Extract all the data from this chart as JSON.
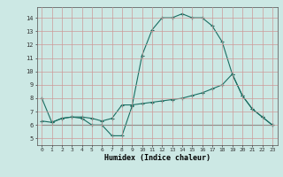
{
  "title": "",
  "xlabel": "Humidex (Indice chaleur)",
  "bg_color": "#cce8e4",
  "grid_color": "#cc9999",
  "line_color": "#1a6e62",
  "x_ticks": [
    0,
    1,
    2,
    3,
    4,
    5,
    6,
    7,
    8,
    9,
    10,
    11,
    12,
    13,
    14,
    15,
    16,
    17,
    18,
    19,
    20,
    21,
    22,
    23
  ],
  "ylim": [
    4.5,
    14.8
  ],
  "xlim": [
    -0.5,
    23.5
  ],
  "series1_x": [
    0,
    1,
    2,
    3,
    4,
    5,
    6,
    7,
    8,
    9,
    10,
    11,
    12,
    13,
    14,
    15,
    16,
    17,
    18,
    19,
    20,
    21,
    22,
    23
  ],
  "series1_y": [
    8.0,
    6.2,
    6.5,
    6.6,
    6.5,
    6.0,
    6.0,
    5.2,
    5.2,
    7.4,
    11.2,
    13.1,
    14.0,
    14.0,
    14.3,
    14.0,
    14.0,
    13.4,
    12.2,
    9.8,
    8.2,
    7.2,
    6.6,
    6.0
  ],
  "series2_x": [
    0,
    1,
    2,
    3,
    4,
    5,
    6,
    7,
    8,
    9,
    10,
    11,
    12,
    13,
    14,
    15,
    16,
    17,
    18,
    19,
    20,
    21,
    22,
    23
  ],
  "series2_y": [
    6.3,
    6.2,
    6.5,
    6.6,
    6.6,
    6.5,
    6.3,
    6.5,
    7.5,
    7.5,
    7.6,
    7.7,
    7.8,
    7.9,
    8.0,
    8.2,
    8.4,
    8.7,
    9.0,
    9.8,
    8.2,
    7.2,
    6.6,
    6.0
  ],
  "series3_x": [
    0,
    1,
    2,
    3,
    4,
    5,
    6,
    7,
    8,
    9,
    10,
    11,
    12,
    13,
    14,
    15,
    16,
    17,
    18,
    19,
    20,
    21,
    22,
    23
  ],
  "series3_y": [
    6.0,
    6.0,
    6.0,
    6.0,
    6.0,
    6.0,
    6.0,
    6.0,
    6.0,
    6.0,
    6.0,
    6.0,
    6.0,
    6.0,
    6.0,
    6.0,
    6.0,
    6.0,
    6.0,
    6.0,
    6.0,
    6.0,
    6.0,
    6.0
  ],
  "yticks": [
    5,
    6,
    7,
    8,
    9,
    10,
    11,
    12,
    13,
    14
  ]
}
